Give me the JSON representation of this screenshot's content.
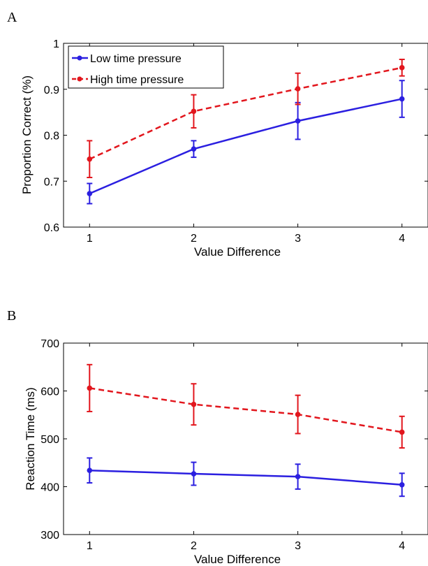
{
  "colors": {
    "low": "#2b1fe0",
    "high": "#e2161d"
  },
  "chart_data": [
    {
      "panel": "A",
      "type": "line",
      "xlabel": "Value Difference",
      "ylabel": "Proportion Correct (%)",
      "x": [
        1,
        2,
        3,
        4
      ],
      "xlim": [
        0.75,
        4.25
      ],
      "ylim": [
        0.6,
        1.0
      ],
      "xticks": [
        1,
        2,
        3,
        4
      ],
      "yticks": [
        0.6,
        0.7,
        0.8,
        0.9,
        1.0
      ],
      "ytick_labels": [
        "0.6",
        "0.7",
        "0.8",
        "0.9",
        "1"
      ],
      "grid": false,
      "legend_position": "top-left",
      "series": [
        {
          "name": "Low time pressure",
          "color": "#2b1fe0",
          "dashed": false,
          "values": [
            0.673,
            0.77,
            0.831,
            0.879
          ],
          "err": [
            0.022,
            0.018,
            0.04,
            0.04
          ]
        },
        {
          "name": "High time pressure",
          "color": "#e2161d",
          "dashed": true,
          "values": [
            0.748,
            0.852,
            0.901,
            0.947
          ],
          "err": [
            0.04,
            0.036,
            0.034,
            0.018
          ]
        }
      ]
    },
    {
      "panel": "B",
      "type": "line",
      "xlabel": "Value Difference",
      "ylabel": "Reaction Time (ms)",
      "x": [
        1,
        2,
        3,
        4
      ],
      "xlim": [
        0.75,
        4.25
      ],
      "ylim": [
        300,
        700
      ],
      "xticks": [
        1,
        2,
        3,
        4
      ],
      "yticks": [
        300,
        400,
        500,
        600,
        700
      ],
      "ytick_labels": [
        "300",
        "400",
        "500",
        "600",
        "700"
      ],
      "grid": false,
      "series": [
        {
          "name": "",
          "color": "#2b1fe0",
          "dashed": false,
          "values": [
            434,
            427,
            421,
            404
          ],
          "err": [
            26,
            24,
            26,
            24
          ]
        },
        {
          "name": "",
          "color": "#e2161d",
          "dashed": true,
          "values": [
            606,
            572,
            551,
            514
          ],
          "err": [
            49,
            43,
            40,
            33
          ]
        }
      ]
    }
  ]
}
